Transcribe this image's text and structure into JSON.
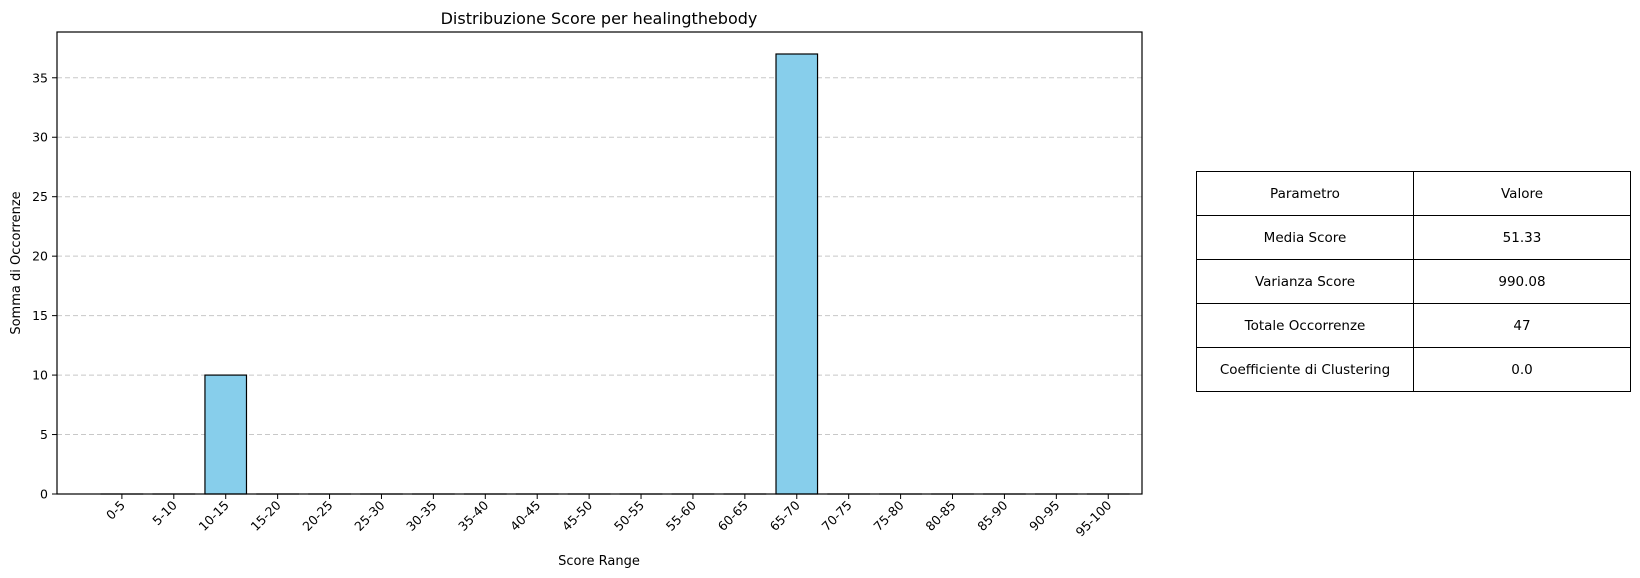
{
  "chart_data": {
    "type": "bar",
    "title": "Distribuzione Score per healingthebody",
    "xlabel": "Score Range",
    "ylabel": "Somma di Occorrenze",
    "categories": [
      "0-5",
      "5-10",
      "10-15",
      "15-20",
      "20-25",
      "25-30",
      "30-35",
      "35-40",
      "40-45",
      "45-50",
      "50-55",
      "55-60",
      "60-65",
      "65-70",
      "70-75",
      "75-80",
      "80-85",
      "85-90",
      "90-95",
      "95-100"
    ],
    "values": [
      0,
      0,
      10,
      0,
      0,
      0,
      0,
      0,
      0,
      0,
      0,
      0,
      0,
      37,
      0,
      0,
      0,
      0,
      0,
      0
    ],
    "yticks": [
      0,
      5,
      10,
      15,
      20,
      25,
      30,
      35
    ],
    "ylim": [
      0,
      38.85
    ],
    "grid": "y dashed",
    "bar_color": "#87ceeb",
    "edge_color": "#000000"
  },
  "table": {
    "header": {
      "param": "Parametro",
      "value": "Valore"
    },
    "rows": [
      {
        "param": "Media Score",
        "value": "51.33"
      },
      {
        "param": "Varianza Score",
        "value": "990.08"
      },
      {
        "param": "Totale Occorrenze",
        "value": "47"
      },
      {
        "param": "Coefficiente di Clustering",
        "value": "0.0"
      }
    ]
  }
}
